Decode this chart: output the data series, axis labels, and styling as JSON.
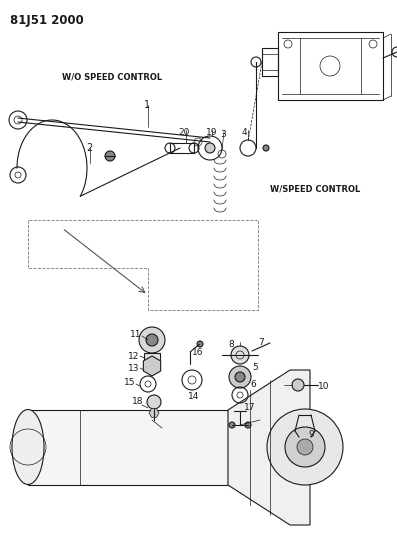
{
  "title": "81J51 2000",
  "bg_color": "#ffffff",
  "lc": "#1a1a1a",
  "wo_speed_label": "W/O SPEED CONTROL",
  "w_speed_label": "W/SPEED CONTROL",
  "fig_w": 3.97,
  "fig_h": 5.33,
  "dpi": 100
}
